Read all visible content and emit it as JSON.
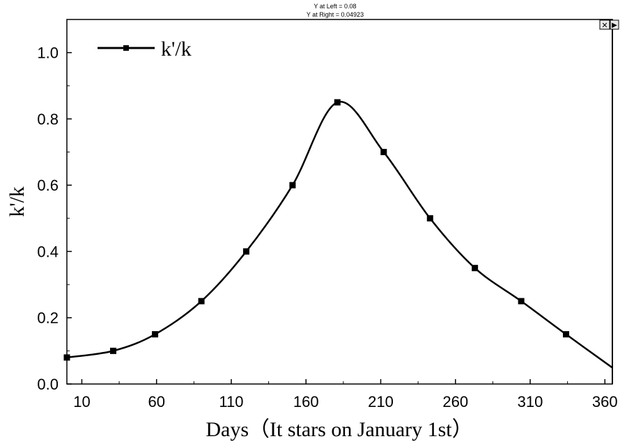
{
  "chart_data": {
    "type": "line",
    "title": "",
    "xlabel": "Days（It stars on January 1st）",
    "ylabel": "k'/k",
    "xlim": [
      0,
      365
    ],
    "ylim": [
      0,
      1.1
    ],
    "xticks": [
      10,
      60,
      110,
      160,
      210,
      260,
      310,
      360
    ],
    "yticks": [
      0.0,
      0.2,
      0.4,
      0.6,
      0.8,
      1.0
    ],
    "ytick_labels": [
      "0.0",
      "0.2",
      "0.4",
      "0.6",
      "0.8",
      "1.0"
    ],
    "grid": false,
    "legend_position": "top-left",
    "series": [
      {
        "name": "k'/k",
        "marker": "square",
        "color": "#000000",
        "x": [
          0,
          31,
          59,
          90,
          120,
          151,
          181,
          212,
          243,
          273,
          304,
          334,
          365
        ],
        "values": [
          0.08,
          0.1,
          0.15,
          0.25,
          0.4,
          0.6,
          0.85,
          0.7,
          0.5,
          0.35,
          0.25,
          0.15,
          0.04923
        ],
        "markers_shown": [
          true,
          true,
          true,
          true,
          true,
          true,
          true,
          true,
          true,
          true,
          true,
          true,
          false
        ]
      }
    ]
  },
  "cursor": {
    "y_left": "Y at Left = 0.08",
    "y_right": "Y at Right = 0.04923"
  },
  "controls": {
    "close_glyph": "✕",
    "scroll_glyph": "▶"
  }
}
